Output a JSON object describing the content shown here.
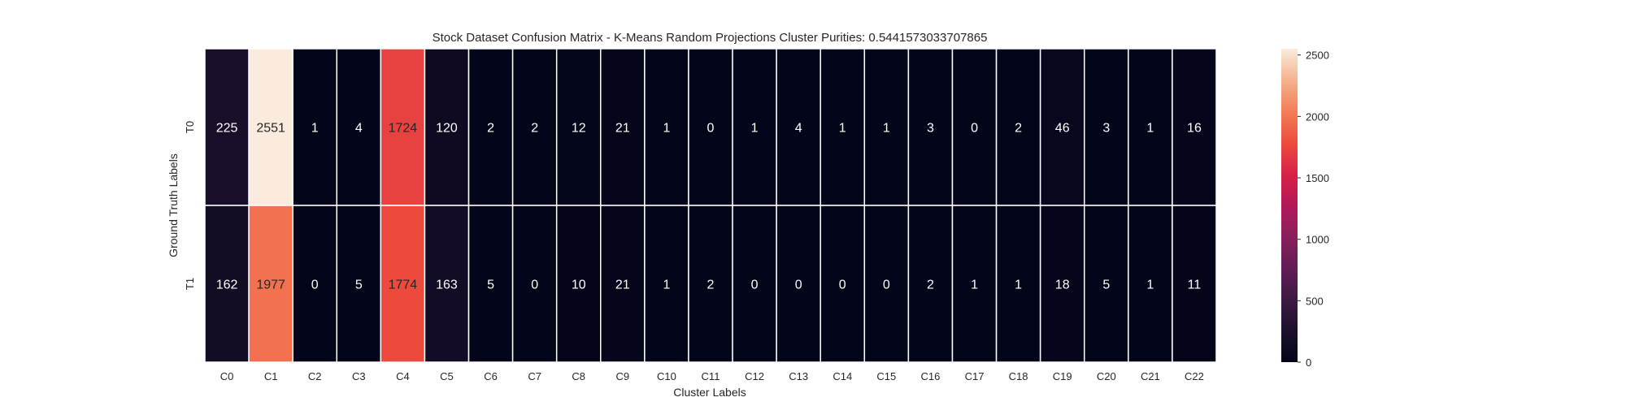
{
  "chart_data": {
    "type": "heatmap",
    "title": "Stock Dataset Confusion Matrix - K-Means Random Projections Cluster Purities: 0.5441573033707865",
    "xlabel": "Cluster Labels",
    "ylabel": "Ground Truth Labels",
    "x_categories": [
      "C0",
      "C1",
      "C2",
      "C3",
      "C4",
      "C5",
      "C6",
      "C7",
      "C8",
      "C9",
      "C10",
      "C11",
      "C12",
      "C13",
      "C14",
      "C15",
      "C16",
      "C17",
      "C18",
      "C19",
      "C20",
      "C21",
      "C22"
    ],
    "y_categories": [
      "T0",
      "T1"
    ],
    "values": [
      [
        225,
        2551,
        1,
        4,
        1724,
        120,
        2,
        2,
        12,
        21,
        1,
        0,
        1,
        4,
        1,
        1,
        3,
        0,
        2,
        46,
        3,
        1,
        16
      ],
      [
        162,
        1977,
        0,
        5,
        1774,
        163,
        5,
        0,
        10,
        21,
        1,
        2,
        0,
        0,
        0,
        0,
        2,
        1,
        1,
        18,
        5,
        1,
        11
      ]
    ],
    "colorbar": {
      "min": 0,
      "max": 2551,
      "ticks": [
        0,
        500,
        1000,
        1500,
        2000,
        2500
      ],
      "colormap": "rocket"
    },
    "annotations": true
  }
}
